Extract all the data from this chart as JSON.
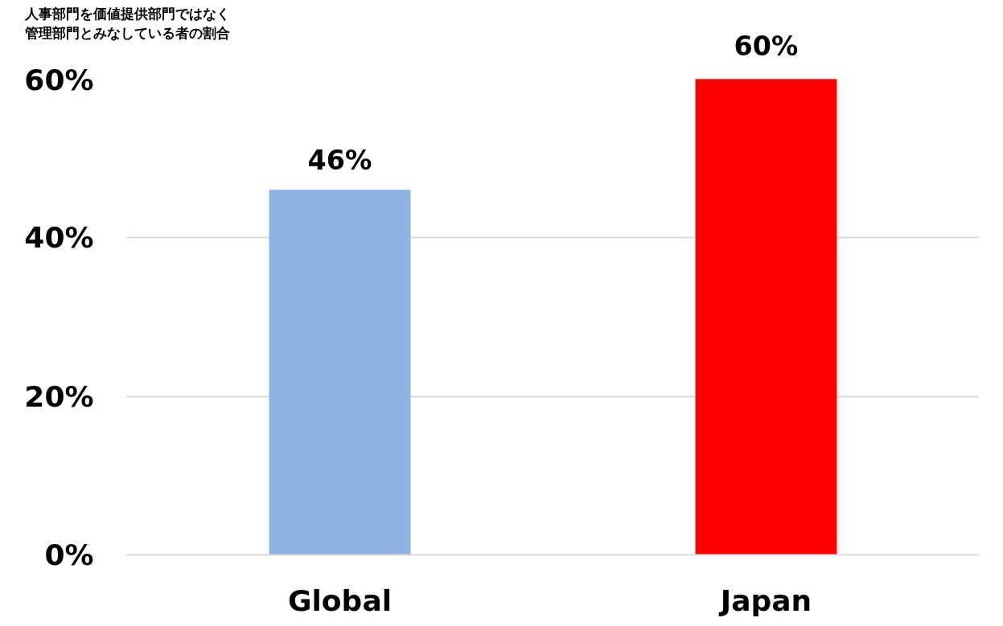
{
  "chart_data": {
    "type": "bar",
    "ylabel": "人事部門を価値提供部門ではなく管理部門とみなしている者の割合",
    "categories": [
      "Global",
      "Japan"
    ],
    "values": [
      46,
      60
    ],
    "colors": [
      "#8eb4e3",
      "#ff0000"
    ],
    "value_labels": [
      "46%",
      "60%"
    ],
    "ylim": [
      0,
      60
    ],
    "yticks": [
      {
        "value": 0,
        "label": "0%"
      },
      {
        "value": 20,
        "label": "20%"
      },
      {
        "value": 40,
        "label": "40%"
      },
      {
        "value": 60,
        "label": "60%"
      }
    ],
    "grid": "y"
  }
}
